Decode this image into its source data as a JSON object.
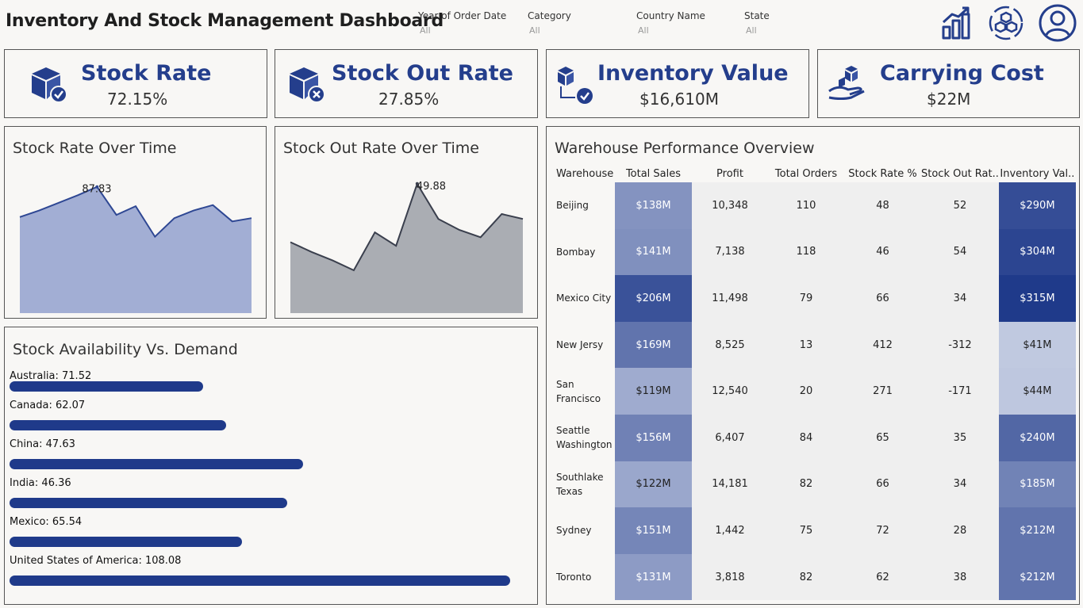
{
  "header": {
    "title": "Inventory And Stock Management Dashboard",
    "filters": [
      {
        "label": "Year of Order Date",
        "value": "All"
      },
      {
        "label": "Category",
        "value": "All"
      },
      {
        "label": "Country Name",
        "value": "All"
      },
      {
        "label": "State",
        "value": "All"
      }
    ],
    "icons": [
      "bar-chart-icon",
      "boxes-cycle-icon",
      "user-icon"
    ]
  },
  "kpis": [
    {
      "title": "Stock Rate",
      "value": "72.15%",
      "icon": "box-check-icon"
    },
    {
      "title": "Stock Out Rate",
      "value": "27.85%",
      "icon": "box-cross-icon"
    },
    {
      "title": "Inventory Value",
      "value": "$16,610M",
      "icon": "box-flow-check-icon"
    },
    {
      "title": "Carrying Cost",
      "value": "$22M",
      "icon": "hand-boxes-icon"
    }
  ],
  "colors": {
    "accent": "#243e8c",
    "bar": "#1f3a8a",
    "area1": "#a2aed4",
    "area1_line": "#2e4793",
    "area2": "#aaadb3",
    "area2_line": "#3a3f4d"
  },
  "stock_rate_chart": {
    "title": "Stock Rate Over Time",
    "peak_label": "87.83"
  },
  "stock_out_chart": {
    "title": "Stock Out Rate Over Time",
    "peak_label": "49.88"
  },
  "availability": {
    "title": "Stock Availability Vs. Demand",
    "items": [
      {
        "country": "Australia:",
        "value": "71.52"
      },
      {
        "country": "Canada:",
        "value": "62.07"
      },
      {
        "country": "China:",
        "value": "47.63"
      },
      {
        "country": "India:",
        "value": "46.36"
      },
      {
        "country": "Mexico:",
        "value": "65.54"
      },
      {
        "country": "United States of America:",
        "value": "108.08"
      }
    ]
  },
  "warehouse": {
    "title": "Warehouse Performance Overview",
    "columns": [
      "Warehouse",
      "Total Sales",
      "Profit",
      "Total Orders",
      "Stock Rate %",
      "Stock Out Rat..",
      "Inventory Val.."
    ],
    "rows": [
      {
        "name": "Beijing",
        "sales": "$138M",
        "profit": "10,348",
        "orders": "110",
        "stock_rate": "48",
        "stock_out": "52",
        "inventory": "$290M",
        "sales_shade": 0.45,
        "inv_shade": 0.88
      },
      {
        "name": "Bombay",
        "sales": "$141M",
        "profit": "7,138",
        "orders": "118",
        "stock_rate": "46",
        "stock_out": "54",
        "inventory": "$304M",
        "sales_shade": 0.47,
        "inv_shade": 0.93
      },
      {
        "name": "Mexico City",
        "sales": "$206M",
        "profit": "11,498",
        "orders": "79",
        "stock_rate": "66",
        "stock_out": "34",
        "inventory": "$315M",
        "sales_shade": 0.85,
        "inv_shade": 1.0
      },
      {
        "name": "New Jersy",
        "sales": "$169M",
        "profit": "8,525",
        "orders": "13",
        "stock_rate": "412",
        "stock_out": "-312",
        "inventory": "$41M",
        "sales_shade": 0.64,
        "inv_shade": 0.12
      },
      {
        "name": "San Francisco",
        "sales": "$119M",
        "profit": "12,540",
        "orders": "20",
        "stock_rate": "271",
        "stock_out": "-171",
        "inventory": "$44M",
        "sales_shade": 0.3,
        "inv_shade": 0.13
      },
      {
        "name": "Seattle Washington",
        "sales": "$156M",
        "profit": "6,407",
        "orders": "84",
        "stock_rate": "65",
        "stock_out": "35",
        "inventory": "$240M",
        "sales_shade": 0.56,
        "inv_shade": 0.72
      },
      {
        "name": "Southlake Texas",
        "sales": "$122M",
        "profit": "14,181",
        "orders": "82",
        "stock_rate": "66",
        "stock_out": "34",
        "inventory": "$185M",
        "sales_shade": 0.33,
        "inv_shade": 0.55
      },
      {
        "name": "Sydney",
        "sales": "$151M",
        "profit": "1,442",
        "orders": "75",
        "stock_rate": "72",
        "stock_out": "28",
        "inventory": "$212M",
        "sales_shade": 0.53,
        "inv_shade": 0.64
      },
      {
        "name": "Toronto",
        "sales": "$131M",
        "profit": "3,818",
        "orders": "82",
        "stock_rate": "62",
        "stock_out": "38",
        "inventory": "$212M",
        "sales_shade": 0.4,
        "inv_shade": 0.64
      }
    ]
  },
  "chart_data": [
    {
      "type": "area",
      "title": "Stock Rate Over Time",
      "values": [
        74.0,
        77.0,
        80.5,
        84.0,
        87.83,
        75.0,
        79.0,
        65.0,
        73.5,
        77.0,
        79.5,
        72.0,
        73.5
      ],
      "ylim": [
        30,
        95
      ],
      "annotations": [
        "87.83"
      ]
    },
    {
      "type": "area",
      "title": "Stock Out Rate Over Time",
      "values": [
        26.0,
        22.0,
        18.5,
        14.5,
        30.0,
        24.5,
        49.88,
        35.5,
        31.0,
        28.0,
        37.5,
        35.5
      ],
      "ylim": [
        -3,
        55
      ],
      "annotations": [
        "49.88"
      ]
    },
    {
      "type": "bar",
      "title": "Stock Availability Vs. Demand",
      "categories": [
        "Australia",
        "Canada",
        "China",
        "India",
        "Mexico",
        "United States of America"
      ],
      "values": [
        71.52,
        62.07,
        47.63,
        46.36,
        65.54,
        108.08
      ],
      "bar_fill": [
        0.387,
        0.432,
        0.587,
        0.555,
        0.465,
        1.0
      ]
    }
  ]
}
